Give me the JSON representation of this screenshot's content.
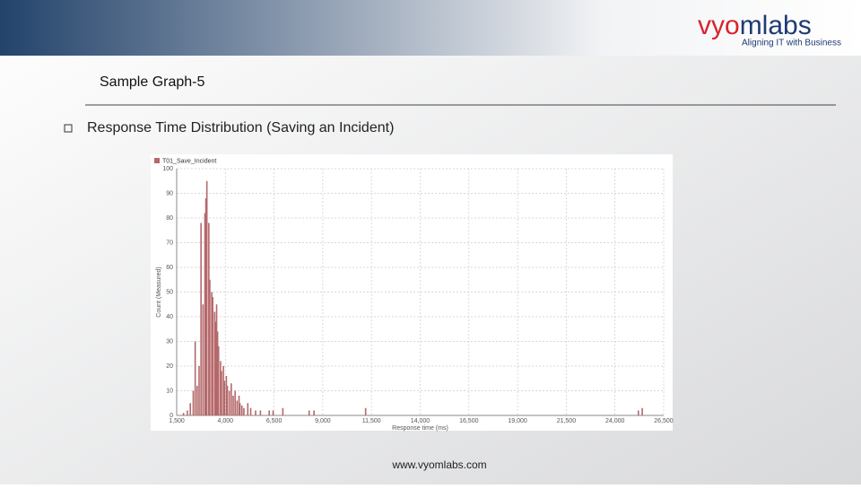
{
  "header": {
    "logo": {
      "part1": "vy",
      "part2": "o",
      "part3": "mlabs"
    },
    "tagline": "Aligning IT with Business"
  },
  "title": "Sample Graph-5",
  "bullet": "Response Time Distribution (Saving an Incident)",
  "footer": "www.vyomlabs.com",
  "chart_data": {
    "type": "bar",
    "series": [
      {
        "name": "T01_Save_Incident",
        "color": "#b5696b",
        "x": [
          1850,
          2050,
          2200,
          2350,
          2450,
          2550,
          2650,
          2750,
          2850,
          2950,
          3000,
          3050,
          3150,
          3200,
          3300,
          3350,
          3450,
          3500,
          3550,
          3600,
          3650,
          3750,
          3800,
          3900,
          3950,
          4050,
          4100,
          4200,
          4300,
          4400,
          4500,
          4600,
          4700,
          4750,
          4850,
          4950,
          5150,
          5300,
          5550,
          5800,
          6250,
          6450,
          6950,
          8300,
          8550,
          11200,
          25200,
          25400
        ],
        "values": [
          1,
          2,
          5,
          10,
          30,
          12,
          20,
          78,
          45,
          82,
          88,
          95,
          78,
          55,
          50,
          48,
          42,
          38,
          45,
          34,
          28,
          22,
          18,
          20,
          14,
          16,
          12,
          10,
          13,
          8,
          10,
          6,
          8,
          5,
          4,
          3,
          5,
          3,
          2,
          2,
          2,
          2,
          3,
          2,
          2,
          3,
          2,
          3
        ]
      }
    ],
    "x_label": "Response time (ms)",
    "y_label": "Count (Measured)",
    "xlim": [
      1500,
      26500
    ],
    "xticks": [
      {
        "value": 1500,
        "label": "1,500"
      },
      {
        "value": 4000,
        "label": "4,000"
      },
      {
        "value": 6500,
        "label": "6,500"
      },
      {
        "value": 9000,
        "label": "9,000"
      },
      {
        "value": 11500,
        "label": "11,500"
      },
      {
        "value": 14000,
        "label": "14,000"
      },
      {
        "value": 16500,
        "label": "16,500"
      },
      {
        "value": 19000,
        "label": "19,000"
      },
      {
        "value": 21500,
        "label": "21,500"
      },
      {
        "value": 24000,
        "label": "24,000"
      },
      {
        "value": 26500,
        "label": "26,500"
      }
    ],
    "ylim": [
      0,
      100
    ],
    "yticks": [
      0,
      10,
      20,
      30,
      40,
      50,
      60,
      70,
      80,
      90,
      100
    ],
    "grid": true
  }
}
